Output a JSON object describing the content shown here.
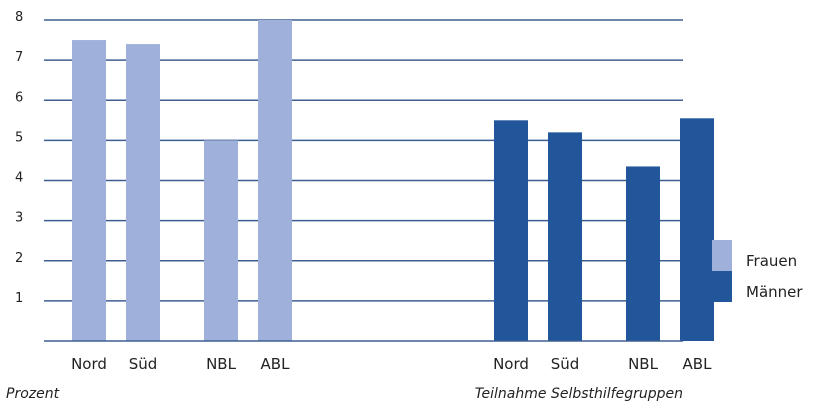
{
  "chart_data": {
    "type": "bar",
    "categories": [
      "Nord",
      "Süd",
      "NBL",
      "ABL"
    ],
    "series": [
      {
        "name": "Frauen",
        "values": [
          7.5,
          7.4,
          5.0,
          8.0
        ],
        "color": "#9fb0da"
      },
      {
        "name": "Männer",
        "values": [
          5.5,
          5.2,
          4.35,
          5.55
        ],
        "color": "#21579a"
      }
    ],
    "yticks": [
      1,
      2,
      3,
      4,
      5,
      6,
      7,
      8
    ],
    "ylim": [
      0,
      8
    ],
    "ylabel": "Prozent",
    "xlabel": "Teilnahme Selbsthilfegruppen",
    "grid": true,
    "grid_color": "#3d5e92",
    "legend_position": "right"
  }
}
